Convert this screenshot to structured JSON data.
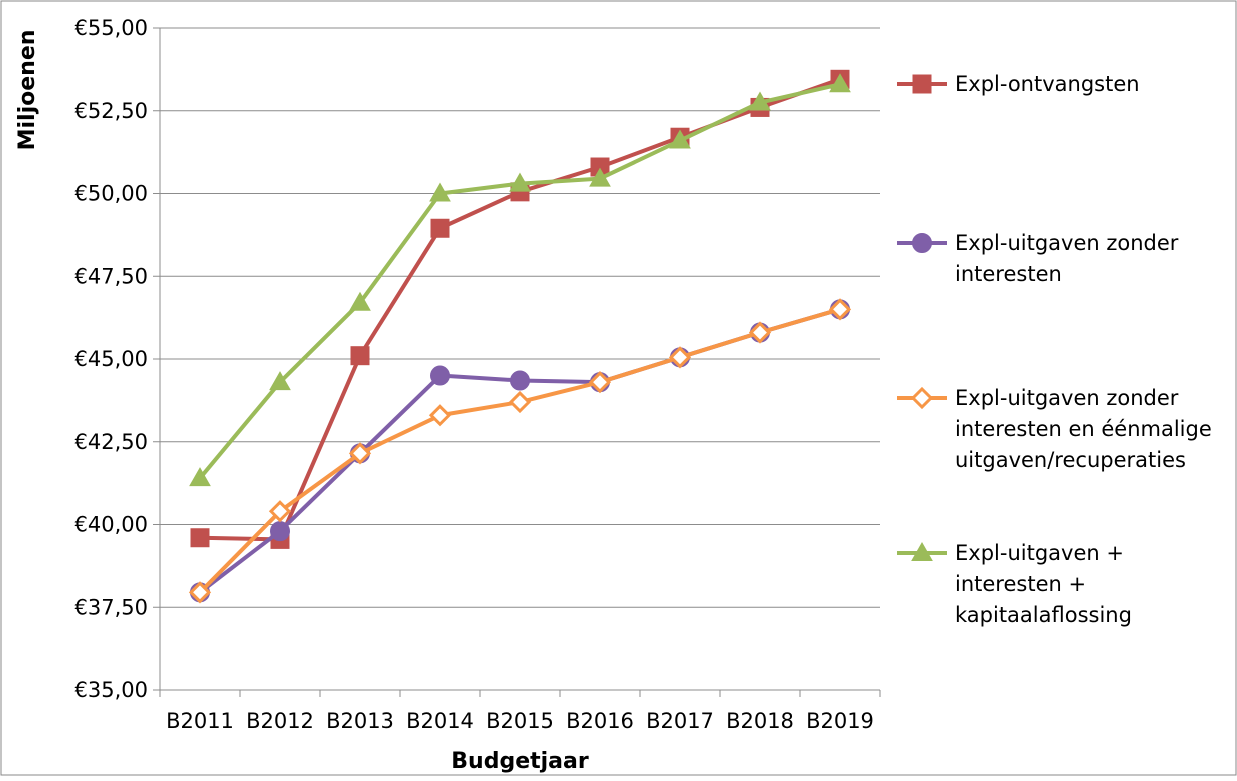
{
  "chart_data": {
    "type": "line",
    "title": "",
    "xlabel": "Budgetjaar",
    "ylabel": "Miljoenen",
    "categories": [
      "B2011",
      "B2012",
      "B2013",
      "B2014",
      "B2015",
      "B2016",
      "B2017",
      "B2018",
      "B2019"
    ],
    "y_tick_labels": [
      "€35,00",
      "€37,50",
      "€40,00",
      "€42,50",
      "€45,00",
      "€47,50",
      "€50,00",
      "€52,50",
      "€55,00"
    ],
    "ylim": [
      35,
      55
    ],
    "y_tick_step": 2.5,
    "grid": "horizontal",
    "legend_position": "right",
    "series": [
      {
        "name": "Expl-ontvangsten",
        "name_lines": [
          "Expl-ontvangsten"
        ],
        "color": "#c0504d",
        "marker": "square",
        "values": [
          39.6,
          39.55,
          45.1,
          48.95,
          50.05,
          50.8,
          51.7,
          52.6,
          53.45
        ]
      },
      {
        "name": "Expl-uitgaven zonder interesten",
        "name_lines": [
          "Expl-uitgaven zonder",
          "interesten"
        ],
        "color": "#7f5fa8",
        "marker": "circle",
        "values": [
          37.95,
          39.8,
          42.15,
          44.5,
          44.35,
          44.3,
          45.05,
          45.8,
          46.5
        ]
      },
      {
        "name": "Expl-uitgaven zonder interesten en éénmalige uitgaven/recuperaties",
        "name_lines": [
          "Expl-uitgaven zonder",
          "interesten en éénmalige",
          "uitgaven/recuperaties"
        ],
        "color": "#f79646",
        "marker": "diamond-open",
        "values": [
          37.95,
          40.4,
          42.15,
          43.3,
          43.7,
          44.3,
          45.05,
          45.8,
          46.5
        ]
      },
      {
        "name": "Expl-uitgaven + interesten + kapitaalaflossing",
        "name_lines": [
          "Expl-uitgaven +",
          "interesten +",
          "kapitaalaflossing"
        ],
        "color": "#9bbb59",
        "marker": "triangle",
        "values": [
          41.4,
          44.3,
          46.7,
          50.0,
          50.3,
          50.45,
          51.6,
          52.75,
          53.3
        ]
      }
    ]
  }
}
